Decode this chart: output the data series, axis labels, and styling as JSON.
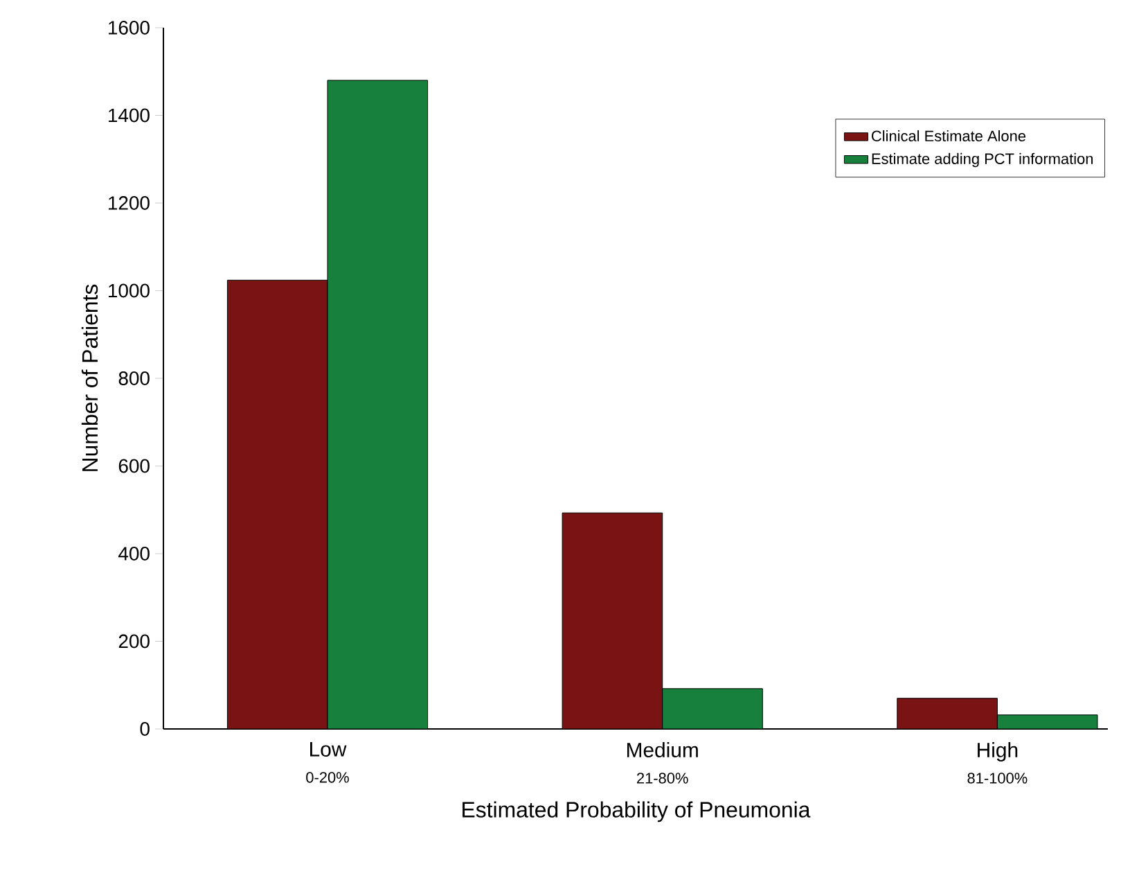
{
  "chart_data": {
    "type": "bar",
    "xlabel": "Estimated Probability of Pneumonia",
    "ylabel": "Number of Patients",
    "categories": [
      "Low",
      "Medium",
      "High"
    ],
    "annotations": [
      "0-20%",
      "21-80%",
      "81-100%"
    ],
    "series": [
      {
        "name": "Clinical Estimate Alone",
        "color": "#7a1414",
        "values": [
          1024,
          493,
          70
        ]
      },
      {
        "name": "Estimate adding PCT information",
        "color": "#16803c",
        "values": [
          1480,
          92,
          32
        ]
      }
    ],
    "ylim": [
      0,
      1600
    ],
    "yticks": [
      0,
      200,
      400,
      600,
      800,
      1000,
      1200,
      1400,
      1600
    ],
    "legend": "top right",
    "grid": false
  }
}
